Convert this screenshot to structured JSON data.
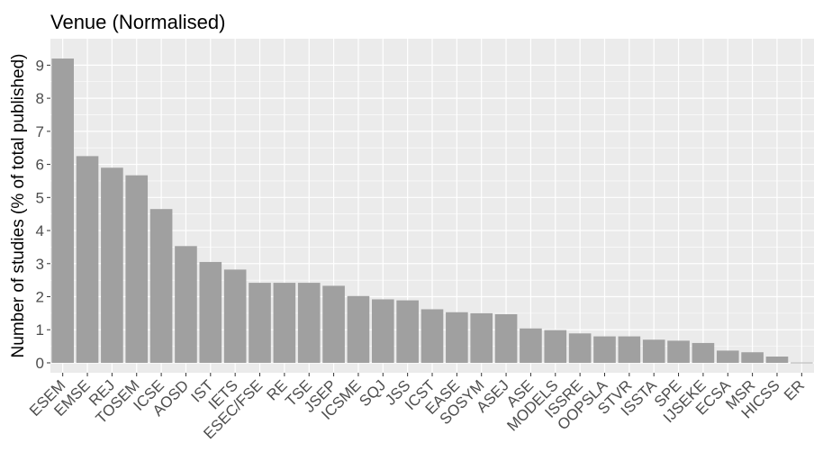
{
  "chart_data": {
    "type": "bar",
    "title": "Venue (Normalised)",
    "xlabel": "",
    "ylabel": "Number of studies (% of total published)",
    "ylim": [
      -0.3,
      9.8
    ],
    "yticks": [
      0,
      1,
      2,
      3,
      4,
      5,
      6,
      7,
      8,
      9
    ],
    "grid": true,
    "categories": [
      "ESEM",
      "EMSE",
      "REJ",
      "TOSEM",
      "ICSE",
      "AOSD",
      "IST",
      "IETS",
      "ESEC/FSE",
      "RE",
      "TSE",
      "JSEP",
      "ICSME",
      "SQJ",
      "JSS",
      "ICST",
      "EASE",
      "SOSYM",
      "ASEJ",
      "ASE",
      "MODELS",
      "ISSRE",
      "OOPSLA",
      "STVR",
      "ISSTA",
      "SPE",
      "IJSEKE",
      "ECSA",
      "MSR",
      "HICSS",
      "ER"
    ],
    "values": [
      9.2,
      6.25,
      5.9,
      5.67,
      4.65,
      3.53,
      3.05,
      2.82,
      2.42,
      2.42,
      2.42,
      2.33,
      2.02,
      1.92,
      1.89,
      1.62,
      1.53,
      1.5,
      1.47,
      1.04,
      0.99,
      0.89,
      0.8,
      0.8,
      0.7,
      0.67,
      0.6,
      0.37,
      0.32,
      0.19,
      0.01
    ],
    "bar_color": "#a0a0a0",
    "panel_color": "#ebebeb",
    "grid_color": "#ffffff"
  }
}
